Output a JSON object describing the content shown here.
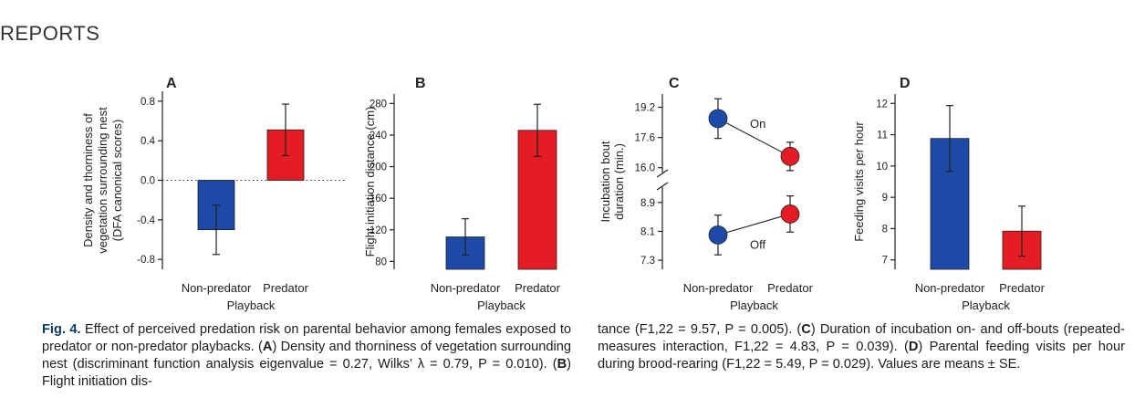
{
  "header": "REPORTS",
  "chart_data": [
    {
      "panel": "A",
      "type": "bar",
      "categories": [
        "Non-predator",
        "Predator"
      ],
      "values": [
        -0.5,
        0.51
      ],
      "errors": [
        0.25,
        0.26
      ],
      "colors": [
        "#1c4aa6",
        "#e41d24"
      ],
      "ylabel": "Density and thorniness of vegetation surrounding nest (DFA canonical scores)",
      "ylabel_lines": [
        "Density and thorniness of",
        "vegetation surrounding nest",
        "(DFA canonical scores)"
      ],
      "xlabel": "Playback",
      "ylim": [
        -0.9,
        0.9
      ],
      "yticks": [
        -0.8,
        -0.4,
        0.0,
        0.4,
        0.8
      ],
      "ytick_labels": [
        "-0.8",
        "-0.4",
        "0.0",
        "0.4",
        "0.8"
      ],
      "zero_line": true
    },
    {
      "panel": "B",
      "type": "bar",
      "categories": [
        "Non-predator",
        "Predator"
      ],
      "values": [
        111,
        246
      ],
      "errors": [
        23,
        33
      ],
      "colors": [
        "#1c4aa6",
        "#e41d24"
      ],
      "ylabel": "Flight initiation distance (cm)",
      "ylabel_lines": [
        "Flight initiation distance (cm)"
      ],
      "xlabel": "Playback",
      "ylim": [
        70,
        292
      ],
      "yticks": [
        80,
        120,
        160,
        200,
        240,
        280
      ],
      "ytick_labels": [
        "80",
        "120",
        "160",
        "200",
        "240",
        "280"
      ]
    },
    {
      "panel": "C",
      "type": "line",
      "categories": [
        "Non-predator",
        "Predator"
      ],
      "series": [
        {
          "name": "On",
          "values": [
            18.6,
            16.6
          ],
          "errors": [
            1.05,
            0.75
          ],
          "upper": true
        },
        {
          "name": "Off",
          "values": [
            8.0,
            8.58
          ],
          "errors": [
            0.55,
            0.5
          ],
          "upper": false
        }
      ],
      "colors": [
        "#1c4aa6",
        "#e41d24"
      ],
      "ylabel": "Incubation bout duration (min.)",
      "ylabel_lines": [
        "Incubation bout",
        "duration (min.)"
      ],
      "xlabel": "Playback",
      "yticks_upper": [
        16.0,
        17.6,
        19.2
      ],
      "ytick_labels_upper": [
        "16.0",
        "17.6",
        "19.2"
      ],
      "ylim_upper": [
        15.6,
        19.9
      ],
      "yticks_lower": [
        7.3,
        8.1,
        8.9
      ],
      "ytick_labels_lower": [
        "7.3",
        "8.1",
        "8.9"
      ],
      "ylim_lower": [
        7.05,
        9.4
      ],
      "broken_axis": true
    },
    {
      "panel": "D",
      "type": "bar",
      "categories": [
        "Non-predator",
        "Predator"
      ],
      "values": [
        10.88,
        7.92
      ],
      "errors": [
        1.05,
        0.8
      ],
      "colors": [
        "#1c4aa6",
        "#e41d24"
      ],
      "ylabel": "Feeding visits per hour",
      "ylabel_lines": [
        "Feeding visits per hour"
      ],
      "xlabel": "Playback",
      "ylim": [
        6.7,
        12.3
      ],
      "yticks": [
        7,
        8,
        9,
        10,
        11,
        12
      ],
      "ytick_labels": [
        "7",
        "8",
        "9",
        "10",
        "11",
        "12"
      ]
    }
  ],
  "caption": {
    "left": {
      "fig_label": "Fig. 4.",
      "intro": " Effect of perceived predation risk on parental behavior among females exposed to predator or non-predator playbacks. (",
      "a": "A",
      "a_text": ") Density and thorniness of vegetation surrounding nest (discriminant function analysis eigenvalue = 0.27, Wilks’ λ = 0.79, P = 0.010). (",
      "b": "B",
      "b_text": ") Flight initiation dis-"
    },
    "right": {
      "b_cont": "tance (F1,22 = 9.57, P = 0.005). (",
      "c": "C",
      "c_text": ") Duration of incubation on- and off-bouts (repeated-measures interaction, F1,22 = 4.83, P = 0.039). (",
      "d": "D",
      "d_text": ") Parental feeding visits per hour during brood-rearing (F1,22 = 5.49, P = 0.029). Values are means ± SE."
    }
  }
}
